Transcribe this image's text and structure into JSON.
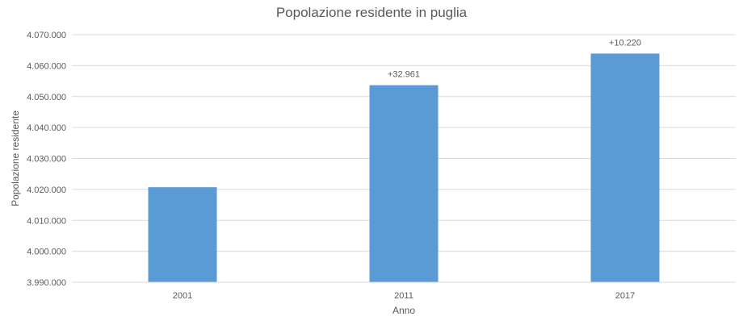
{
  "chart_data": {
    "type": "bar",
    "title": "Popolazione residente in puglia",
    "xlabel": "Anno",
    "ylabel": "Popolazione residente",
    "categories": [
      "2001",
      "2011",
      "2017"
    ],
    "values": [
      4020707,
      4053668,
      4063888
    ],
    "data_labels": [
      "",
      "+32.961",
      "+10.220"
    ],
    "ylim": [
      3990000,
      4070000
    ],
    "yticks": [
      3990000,
      4000000,
      4010000,
      4020000,
      4030000,
      4040000,
      4050000,
      4060000,
      4070000
    ],
    "ytick_labels": [
      "3.990.000",
      "4.000.000",
      "4.010.000",
      "4.020.000",
      "4.030.000",
      "4.040.000",
      "4.050.000",
      "4.060.000",
      "4.070.000"
    ],
    "grid": true,
    "legend": "none",
    "bar_color": "#5b9bd5",
    "grid_color": "#d9d9d9",
    "text_color": "#595959"
  }
}
